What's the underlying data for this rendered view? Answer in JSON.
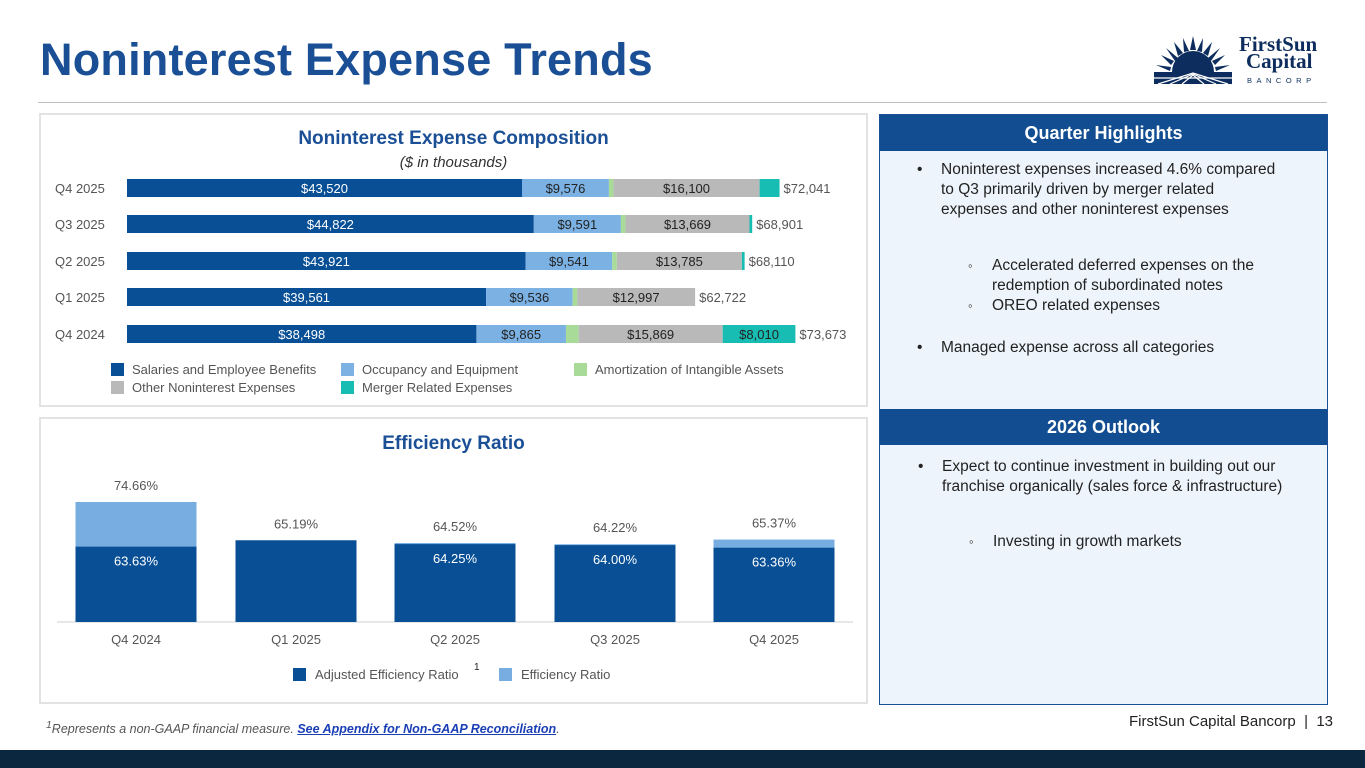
{
  "page": {
    "title": "Noninterest Expense Trends",
    "footer_company": "FirstSun Capital Bancorp",
    "footer_separator": "|",
    "page_number": "13",
    "footnote_sup": "1",
    "footnote_text": "Represents a non-GAAP financial measure.",
    "footnote_link": "See Appendix for Non-GAAP Reconciliation",
    "footnote_period": "."
  },
  "logo": {
    "name_line1": "FirstSun",
    "name_line2": "Capital",
    "sub": "BANCORP",
    "icon": "sunburst-logo-icon"
  },
  "colors": {
    "accent": "#1a4f96",
    "salaries": "#084f95",
    "occupancy": "#7bb1e3",
    "amortization": "#a8db97",
    "other": "#b9b9b9",
    "merger": "#17bdb2",
    "adjusted": "#084f95",
    "efficiency": "#78ade2",
    "side_bg": "#eef4fb"
  },
  "highlights": {
    "header": "Quarter Highlights",
    "bullet1": "Noninterest expenses increased 4.6% compared to Q3 primarily driven by merger related expenses and other noninterest expenses",
    "sub1": "Accelerated deferred expenses on the redemption of subordinated notes",
    "sub2": "OREO related expenses",
    "bullet2": "Managed expense across all categories",
    "bullet_symbol": "•",
    "sub_symbol": "◦"
  },
  "outlook": {
    "header": "2026 Outlook",
    "bullet1": "Expect to continue investment in building out our franchise organically (sales force & infrastructure)",
    "sub1": "Investing in growth markets",
    "bullet_symbol": "•",
    "sub_symbol": "◦"
  },
  "chart_data": [
    {
      "type": "bar",
      "orientation": "horizontal",
      "stacked": true,
      "title": "Noninterest Expense Composition",
      "subtitle": "($ in thousands)",
      "categories": [
        "Q4 2025",
        "Q3 2025",
        "Q2 2025",
        "Q1 2025",
        "Q4 2024"
      ],
      "series": [
        {
          "name": "Salaries and Employee Benefits",
          "color_key": "salaries",
          "values": [
            43520,
            44822,
            43921,
            39561,
            38498
          ],
          "labels": [
            "$43,520",
            "$44,822",
            "$43,921",
            "$39,561",
            "$38,498"
          ]
        },
        {
          "name": "Occupancy and Equipment",
          "color_key": "occupancy",
          "values": [
            9576,
            9591,
            9541,
            9536,
            9865
          ],
          "labels": [
            "$9,576",
            "$9,591",
            "$9,541",
            "$9,536",
            "$9,865"
          ]
        },
        {
          "name": "Amortization of Intangible Assets",
          "color_key": "amortization",
          "values": [
            500,
            500,
            500,
            500,
            1400
          ],
          "labels": [
            "",
            "",
            "",
            "",
            ""
          ]
        },
        {
          "name": "Other Noninterest Expenses",
          "color_key": "other",
          "values": [
            16100,
            13669,
            13785,
            12997,
            15869
          ],
          "labels": [
            "$16,100",
            "$13,669",
            "$13,785",
            "$12,997",
            "$15,869"
          ]
        },
        {
          "name": "Merger Related Expenses",
          "color_key": "merger",
          "values": [
            2200,
            300,
            300,
            0,
            8010
          ],
          "labels": [
            "",
            "",
            "",
            "",
            "$8,010"
          ]
        }
      ],
      "totals": [
        "$72,041",
        "$68,901",
        "$68,110",
        "$62,722",
        "$73,673"
      ],
      "xlim": [
        0,
        80000
      ],
      "legend_position": "bottom"
    },
    {
      "type": "bar",
      "orientation": "vertical",
      "overlaid": true,
      "title": "Efficiency Ratio",
      "categories": [
        "Q4 2024",
        "Q1 2025",
        "Q2 2025",
        "Q3 2025",
        "Q4 2025"
      ],
      "series": [
        {
          "name": "Adjusted Efficiency Ratio",
          "superscript": "1",
          "color_key": "adjusted",
          "values": [
            63.63,
            65.19,
            64.25,
            64.0,
            63.36
          ],
          "labels": [
            "63.63%",
            "",
            "64.25%",
            "64.00%",
            "63.36%"
          ]
        },
        {
          "name": "Efficiency Ratio",
          "color_key": "efficiency",
          "values": [
            74.66,
            65.19,
            64.52,
            64.22,
            65.37
          ],
          "labels": [
            "74.66%",
            "65.19%",
            "64.52%",
            "64.22%",
            "65.37%"
          ]
        }
      ],
      "ylim": [
        45,
        76
      ],
      "legend_position": "bottom"
    }
  ]
}
